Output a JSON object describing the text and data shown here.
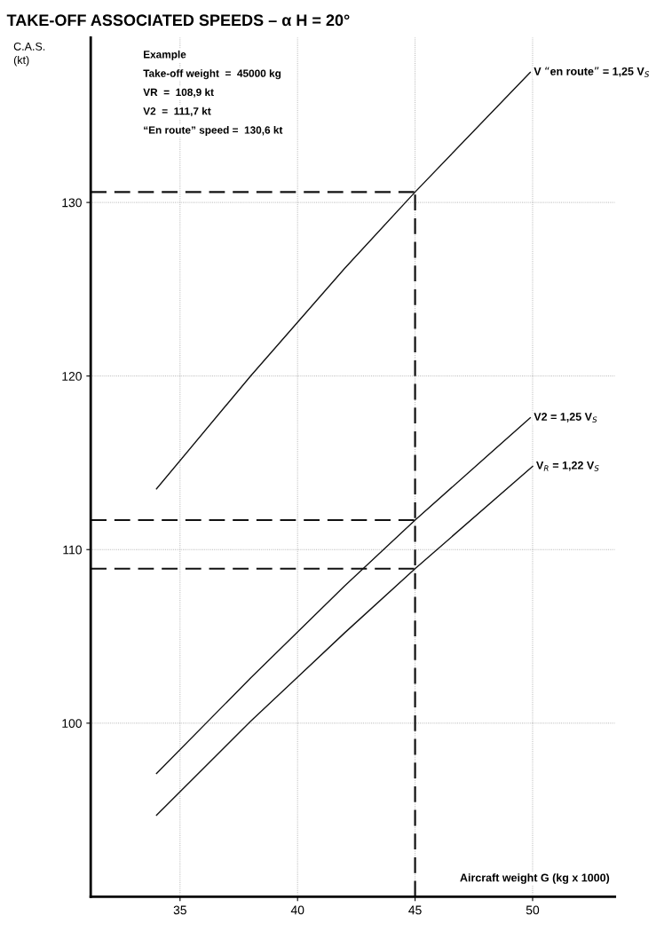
{
  "chart_data": {
    "type": "line",
    "title": "TAKE-OFF ASSOCIATED SPEEDS – α H = 20°",
    "xlabel": "Aircraft weight G (kg x 1000)",
    "ylabel": "C.A.S.\n(kt)",
    "xlim": [
      31.2,
      53.5
    ],
    "ylim": [
      90,
      139.5
    ],
    "xticks": [
      35,
      40,
      45,
      50
    ],
    "yticks": [
      100,
      110,
      120,
      130
    ],
    "grid": true,
    "series": [
      {
        "name": "V “en route” = 1,25 V$_{S}$",
        "color": "#111111",
        "x": [
          34,
          38,
          42,
          45,
          49.9
        ],
        "values": [
          113.5,
          120.0,
          126.2,
          130.6,
          137.5
        ]
      },
      {
        "name": "V2 = 1,25 V$_{S}$",
        "color": "#111111",
        "x": [
          34,
          38,
          42,
          45,
          49.9
        ],
        "values": [
          97.1,
          102.6,
          107.9,
          111.7,
          117.6
        ]
      },
      {
        "name": "V$_{R}$ = 1,22 V$_{S}$",
        "color": "#111111",
        "x": [
          34,
          38,
          42,
          45,
          50
        ],
        "values": [
          94.7,
          100.1,
          105.2,
          108.9,
          114.8
        ]
      },
      {
        "color": "#111111",
        "line_style": "dashed",
        "x": [
          45,
          45
        ],
        "values": [
          90,
          130.6
        ]
      },
      {
        "color": "#111111",
        "line_style": "dashed",
        "x": [
          31.2,
          45
        ],
        "values": [
          130.6,
          130.6
        ]
      },
      {
        "color": "#111111",
        "line_style": "dashed",
        "x": [
          31.2,
          45
        ],
        "values": [
          111.7,
          111.7
        ]
      },
      {
        "color": "#111111",
        "line_style": "dashed",
        "x": [
          31.2,
          45
        ],
        "values": [
          108.9,
          108.9
        ]
      }
    ],
    "annotations": [
      "Example",
      "Take-off weight  =  45000 kg",
      "VR  =  108,9 kt",
      "V2  =  111,7 kt",
      "“En route” speed =  130,6 kt"
    ]
  }
}
